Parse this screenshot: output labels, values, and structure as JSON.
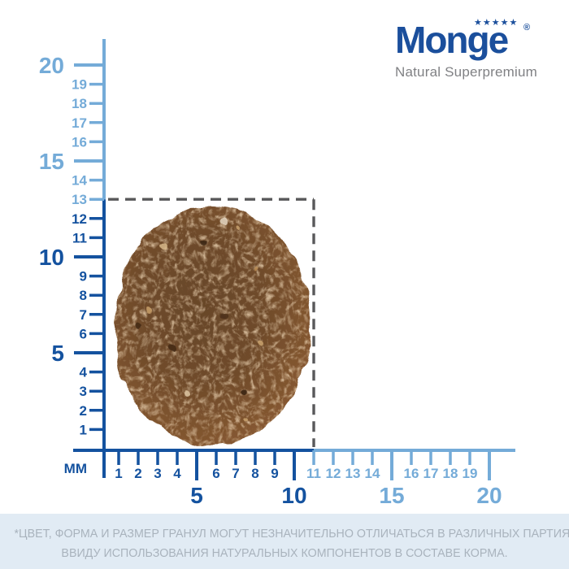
{
  "logo": {
    "wordmark": "Monge",
    "registered": "®",
    "stars": "★★★★★",
    "tagline": "Natural Superpremium",
    "brand_color": "#1b4f9c",
    "tagline_color": "#808184"
  },
  "ruler": {
    "unit_label": "ММ",
    "x_tick_labels": [
      1,
      2,
      3,
      4,
      5,
      6,
      7,
      8,
      9,
      10,
      11,
      12,
      13,
      14,
      15,
      16,
      17,
      18,
      19,
      20
    ],
    "y_tick_labels": [
      1,
      2,
      3,
      4,
      5,
      6,
      7,
      8,
      9,
      10,
      11,
      12,
      13,
      14,
      15,
      16,
      17,
      18,
      19,
      20
    ],
    "major_interval": 5,
    "colors": {
      "dark_blue": "#14529f",
      "light_blue": "#74abd8",
      "dash_gray": "#58585a"
    }
  },
  "kibble": {
    "width_mm": 11,
    "height_mm": 13,
    "main_color": "#6f4b2b"
  },
  "footer": {
    "line1": "*ЦВЕТ, ФОРМА И РАЗМЕР ГРАНУЛ МОГУТ НЕЗНАЧИТЕЛЬНО ОТЛИЧАТЬСЯ В РАЗЛИЧНЫХ ПАРТИЯХ,",
    "line2": "ВВИДУ ИСПОЛЬЗОВАНИЯ НАТУРАЛЬНЫХ КОМПОНЕНТОВ В СОСТАВЕ КОРМА.",
    "bg_color": "#e1ebf4",
    "text_color": "#a9b3bd"
  }
}
